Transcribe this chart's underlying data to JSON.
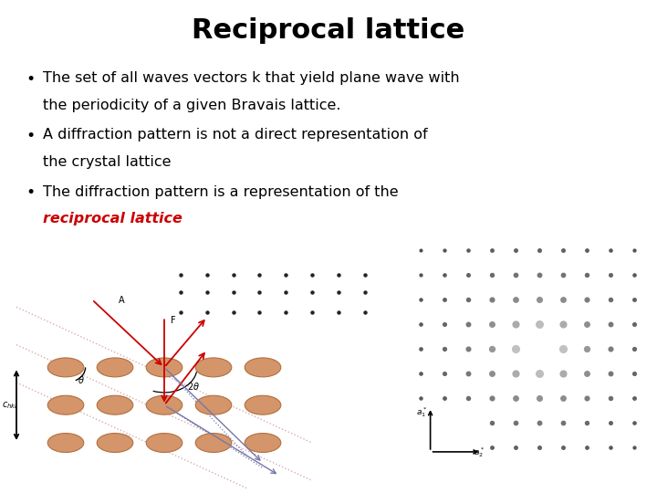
{
  "title": "Reciprocal lattice",
  "title_fontsize": 22,
  "title_fontweight": "bold",
  "bg_color": "#ffffff",
  "bullet1_line1": "The set of all waves vectors k that yield plane wave with",
  "bullet1_line2": "the periodicity of a given Bravais lattice.",
  "bullet2_line1": "A diffraction pattern is not a direct representation of",
  "bullet2_line2": "the crystal lattice",
  "bullet3_line1": "The diffraction pattern is a representation of the",
  "bullet3_line2_red_italic": "reciprocal lattice",
  "text_fontsize": 11.5,
  "text_color": "#000000",
  "red_color": "#cc0000",
  "atom_color": "#d4956a",
  "atom_edge_color": "#b07040",
  "arrow_red": "#cc0000",
  "arrow_blue": "#7777aa",
  "line_color": "#cc8888"
}
